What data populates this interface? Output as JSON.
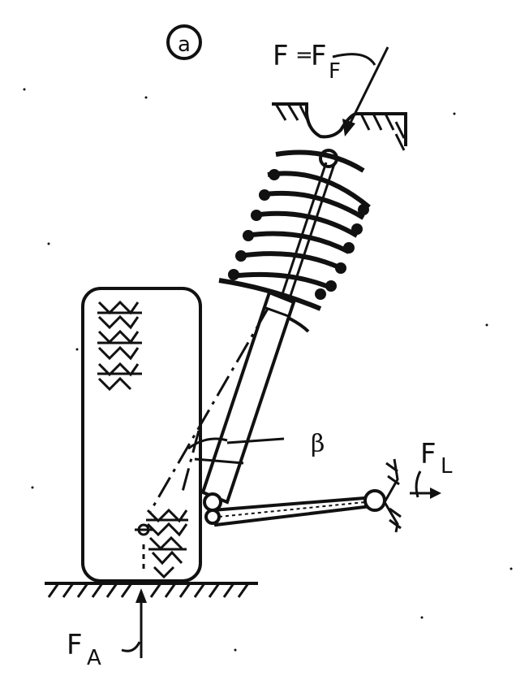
{
  "figure": {
    "panel_label": "a",
    "labels": {
      "spring_force_main": "F",
      "spring_force_eq": "=",
      "spring_force_rhs": "F",
      "spring_force_sub": "F",
      "lateral_force": "F",
      "lateral_force_sub": "L",
      "axle_force": "F",
      "axle_force_sub": "A",
      "angle": "β"
    },
    "colors": {
      "ink": "#111111",
      "paper": "#ffffff"
    }
  }
}
